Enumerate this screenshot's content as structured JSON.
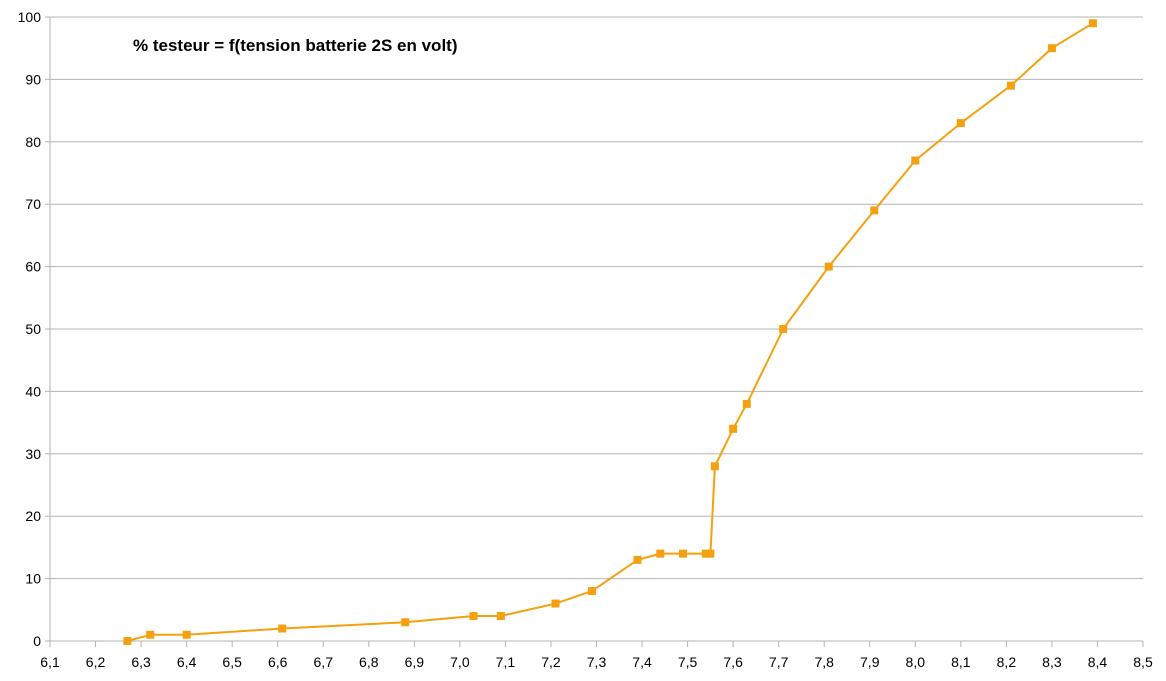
{
  "chart_data": {
    "type": "line",
    "title": "% testeur = f(tension batterie 2S en volt)",
    "xlabel": "",
    "ylabel": "",
    "xlim": [
      6.1,
      8.5
    ],
    "ylim": [
      0,
      100
    ],
    "x_ticks": [
      "6,1",
      "6,2",
      "6,3",
      "6,4",
      "6,5",
      "6,6",
      "6,7",
      "6,8",
      "6,9",
      "7,0",
      "7,1",
      "7,2",
      "7,3",
      "7,4",
      "7,5",
      "7,6",
      "7,7",
      "7,8",
      "7,9",
      "8,0",
      "8,1",
      "8,2",
      "8,3",
      "8,4",
      "8,5"
    ],
    "y_ticks": [
      "0",
      "10",
      "20",
      "30",
      "40",
      "50",
      "60",
      "70",
      "80",
      "90",
      "100"
    ],
    "grid": "horizontal",
    "legend": "none",
    "series": [
      {
        "color": "#f5a00f",
        "marker": "square",
        "x": [
          6.27,
          6.32,
          6.4,
          6.61,
          6.88,
          7.03,
          7.09,
          7.21,
          7.29,
          7.39,
          7.44,
          7.49,
          7.54,
          7.55,
          7.56,
          7.6,
          7.63,
          7.71,
          7.81,
          7.91,
          8.0,
          8.1,
          8.21,
          8.3,
          8.39
        ],
        "y": [
          0,
          1,
          1,
          2,
          3,
          4,
          4,
          6,
          8,
          13,
          14,
          14,
          14,
          14,
          28,
          34,
          38,
          50,
          60,
          69,
          77,
          83,
          89,
          95,
          99
        ]
      }
    ]
  }
}
